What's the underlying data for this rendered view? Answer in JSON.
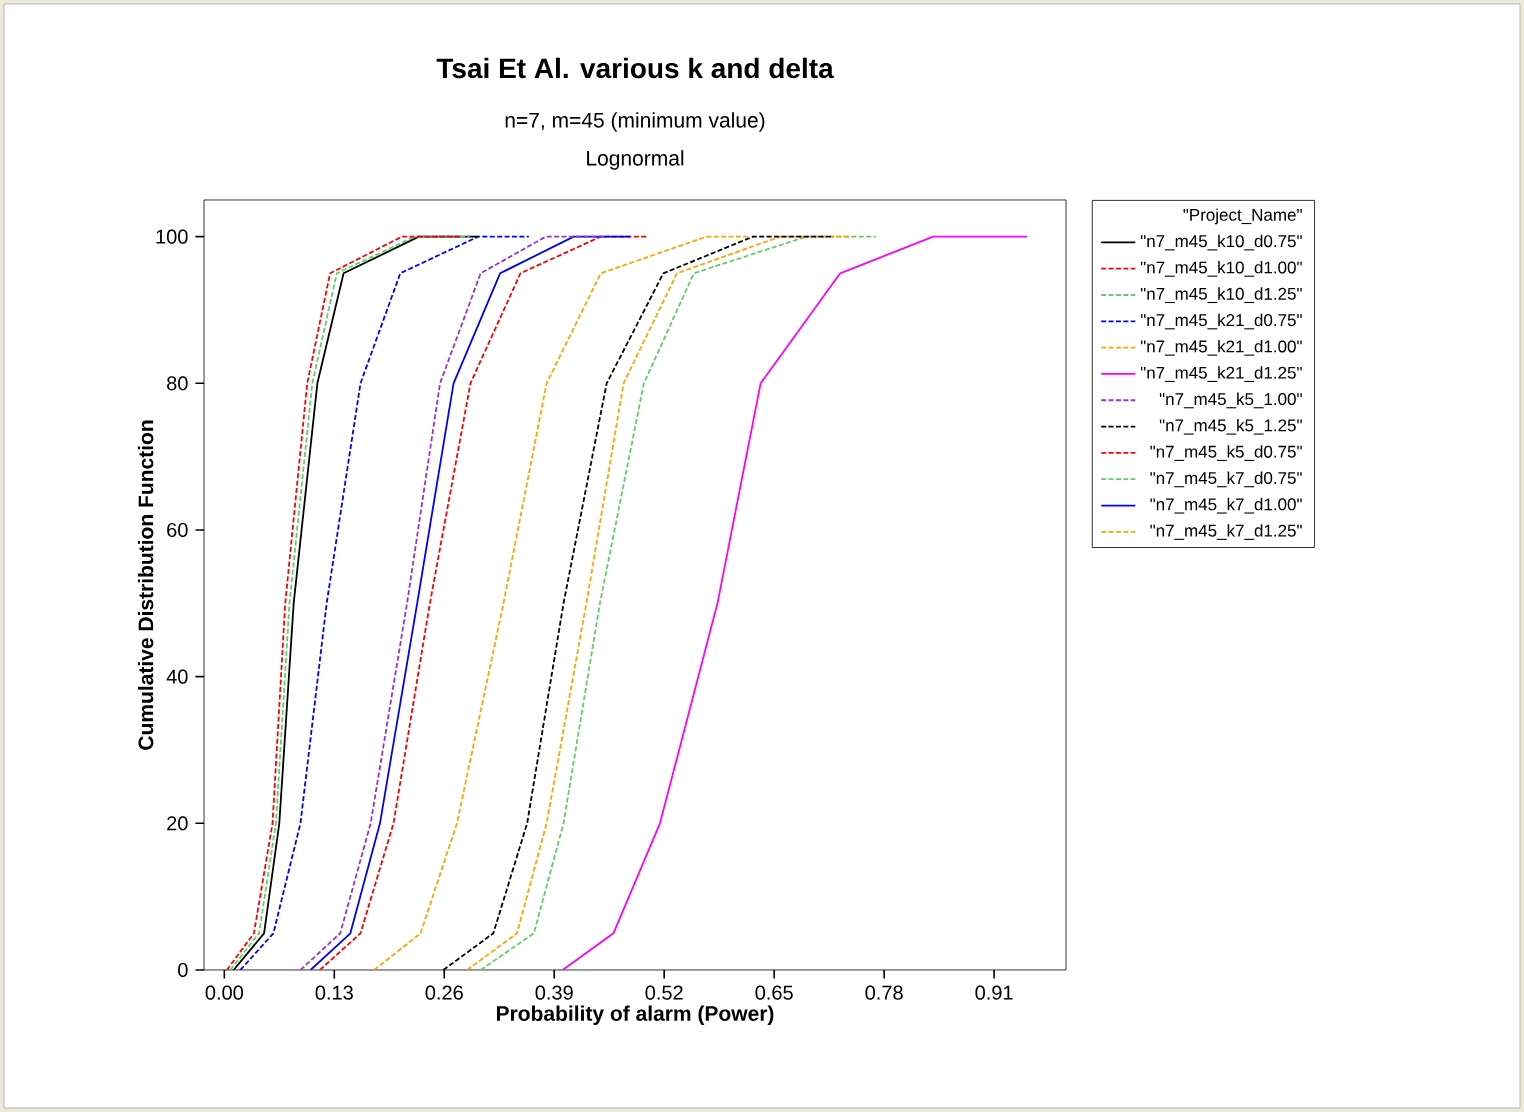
{
  "chart_data": {
    "type": "line",
    "title": "Tsai Et Al. various k and delta",
    "subtitle": "n=7, m=45 (minimum value)",
    "annotations": [
      "Lognormal"
    ],
    "xlabel": "Probability of alarm (Power)",
    "ylabel": "Cumulative Distribution Function",
    "legend_title": "\"Project_Name\"",
    "xlim": [
      -0.024,
      0.995
    ],
    "ylim": [
      0,
      105
    ],
    "xticks": [
      {
        "value": 0,
        "label": "0.00"
      },
      {
        "value": 0.13,
        "label": "0.13"
      },
      {
        "value": 0.26,
        "label": "0.26"
      },
      {
        "value": 0.39,
        "label": "0.39"
      },
      {
        "value": 0.52,
        "label": "0.52"
      },
      {
        "value": 0.65,
        "label": "0.65"
      },
      {
        "value": 0.78,
        "label": "0.78"
      },
      {
        "value": 0.91,
        "label": "0.91"
      }
    ],
    "yticks": [
      0,
      20,
      40,
      60,
      80,
      100
    ],
    "grid": false,
    "legend": "right",
    "marker": "none",
    "series": [
      {
        "name": "\"n7_m45_k10_d0.75\"",
        "color": "#000000",
        "line_style": "solid",
        "x": [
          0.011,
          0.047,
          0.065,
          0.082,
          0.11,
          0.141,
          0.23,
          0.3
        ],
        "values": [
          0,
          5,
          20,
          50,
          80,
          95,
          100,
          100
        ]
      },
      {
        "name": "\"n7_m45_k10_d1.00\"",
        "color": "#ff0000",
        "line_style": "dashed",
        "x": [
          0.113,
          0.161,
          0.2,
          0.243,
          0.291,
          0.35,
          0.445,
          0.5
        ],
        "values": [
          0,
          5,
          20,
          50,
          80,
          95,
          100,
          100
        ]
      },
      {
        "name": "\"n7_m45_k10_d1.25\"",
        "color": "#66cc66",
        "line_style": "dashed",
        "x": [
          0.303,
          0.366,
          0.401,
          0.444,
          0.496,
          0.555,
          0.688,
          0.77
        ],
        "values": [
          0,
          5,
          20,
          50,
          80,
          95,
          100,
          100
        ]
      },
      {
        "name": "\"n7_m45_k21_d0.75\"",
        "color": "#0000ff",
        "line_style": "dashed",
        "x": [
          0.019,
          0.058,
          0.09,
          0.121,
          0.161,
          0.208,
          0.3,
          0.36
        ],
        "values": [
          0,
          5,
          20,
          50,
          80,
          95,
          100,
          100
        ]
      },
      {
        "name": "\"n7_m45_k21_d1.00\"",
        "color": "#ffa500",
        "line_style": "dashed",
        "x": [
          0.177,
          0.232,
          0.275,
          0.33,
          0.381,
          0.445,
          0.57,
          0.62
        ],
        "values": [
          0,
          5,
          20,
          50,
          80,
          95,
          100,
          100
        ]
      },
      {
        "name": "\"n7_m45_k21_d1.25\"",
        "color": "#ff00ff",
        "line_style": "solid",
        "x": [
          0.4,
          0.46,
          0.515,
          0.583,
          0.634,
          0.728,
          0.838,
          0.949
        ],
        "values": [
          0,
          5,
          20,
          50,
          80,
          95,
          100,
          100
        ]
      },
      {
        "name": "\"n7_m45_k5_1.00\"",
        "color": "#9933cc",
        "line_style": "dashed",
        "x": [
          0.09,
          0.137,
          0.173,
          0.216,
          0.255,
          0.303,
          0.38,
          0.45
        ],
        "values": [
          0,
          5,
          20,
          50,
          80,
          95,
          100,
          100
        ]
      },
      {
        "name": "\"n7_m45_k5_1.25\"",
        "color": "#000000",
        "line_style": "dashed",
        "x": [
          0.259,
          0.318,
          0.358,
          0.401,
          0.452,
          0.519,
          0.625,
          0.72
        ],
        "values": [
          0,
          5,
          20,
          50,
          80,
          95,
          100,
          100
        ]
      },
      {
        "name": "\"n7_m45_k5_d0.75\"",
        "color": "#ff0000",
        "line_style": "dashed",
        "x": [
          0.003,
          0.035,
          0.057,
          0.072,
          0.098,
          0.125,
          0.21,
          0.28
        ],
        "values": [
          0,
          5,
          20,
          50,
          80,
          95,
          100,
          100
        ]
      },
      {
        "name": "\"n7_m45_k7_d0.75\"",
        "color": "#66cc66",
        "line_style": "dashed",
        "x": [
          0.007,
          0.041,
          0.061,
          0.077,
          0.104,
          0.133,
          0.225,
          0.29
        ],
        "values": [
          0,
          5,
          20,
          50,
          80,
          95,
          100,
          100
        ]
      },
      {
        "name": "\"n7_m45_k7_d1.00\"",
        "color": "#0000ff",
        "line_style": "solid",
        "x": [
          0.102,
          0.149,
          0.184,
          0.228,
          0.271,
          0.326,
          0.413,
          0.48
        ],
        "values": [
          0,
          5,
          20,
          50,
          80,
          95,
          100,
          100
        ]
      },
      {
        "name": "\"n7_m45_k7_d1.25\"",
        "color": "#ffa500",
        "line_style": "dashed",
        "x": [
          0.287,
          0.346,
          0.381,
          0.428,
          0.472,
          0.535,
          0.657,
          0.74
        ],
        "values": [
          0,
          5,
          20,
          50,
          80,
          95,
          100,
          100
        ]
      }
    ]
  }
}
